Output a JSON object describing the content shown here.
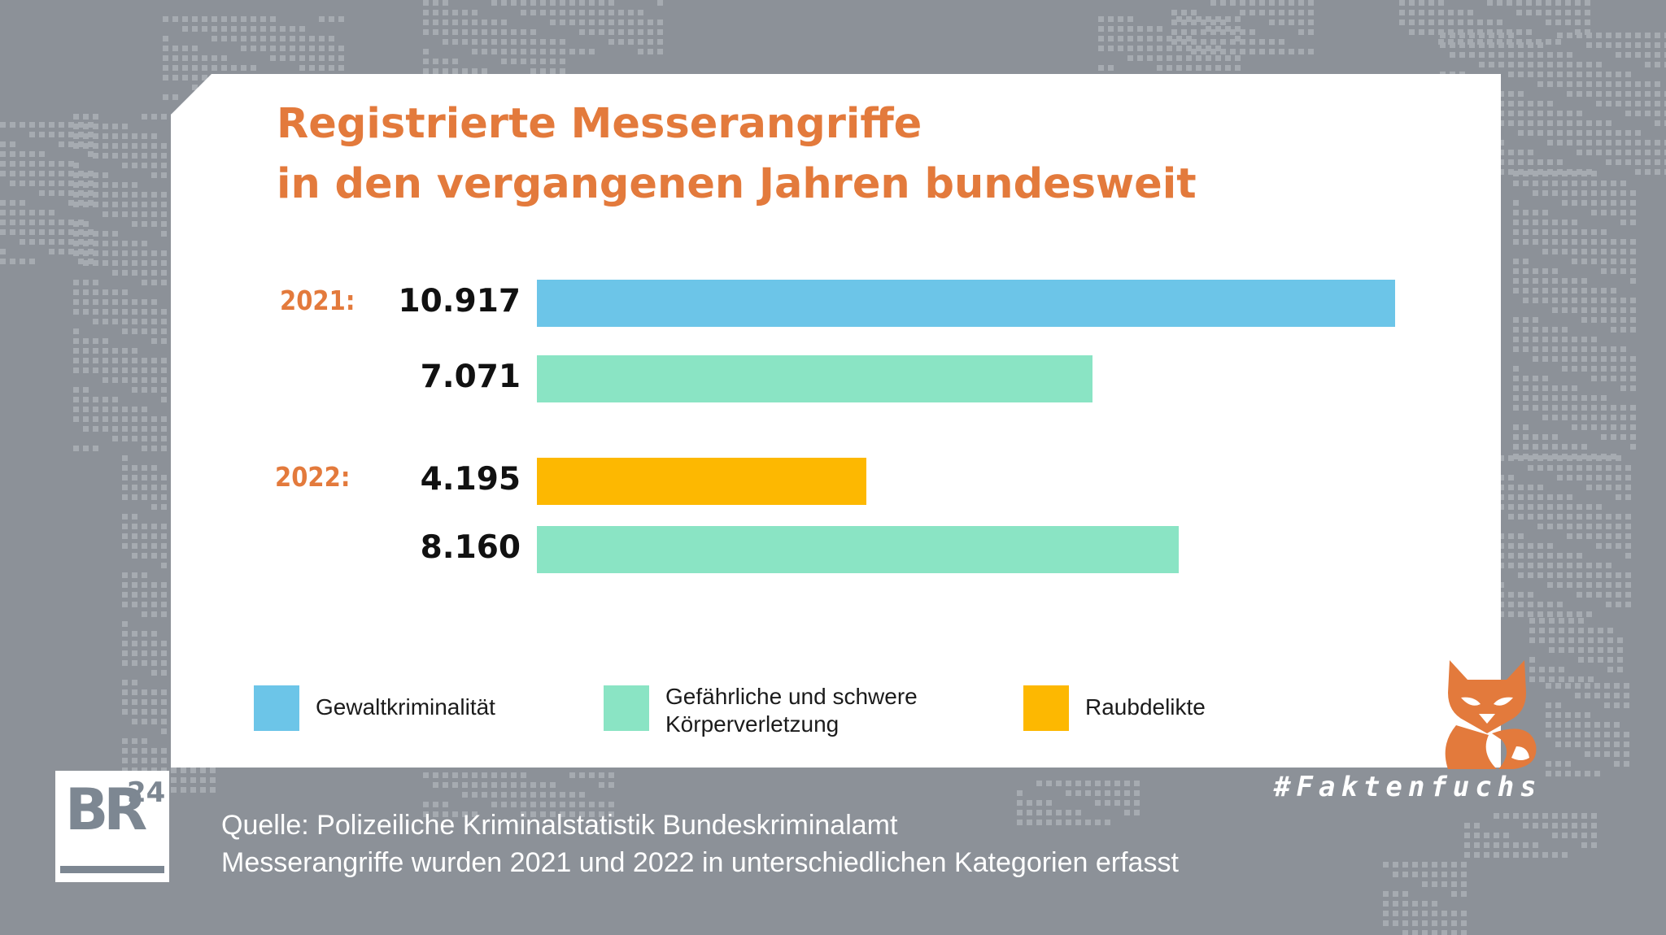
{
  "chart_data": {
    "type": "bar",
    "orientation": "horizontal",
    "title": "Registrierte Messerangriffe in den vergangenen Jahren bundesweit",
    "title_lines": [
      "Registrierte Messerangriffe",
      "in den vergangenen Jahren bundesweit"
    ],
    "groups": [
      {
        "label": "2021:",
        "bars": [
          {
            "category": "Gewaltkriminalität",
            "value": 10917,
            "label": "10.917"
          },
          {
            "category": "Gefährliche und schwere Körperverletzung",
            "value": 7071,
            "label": "7.071"
          }
        ]
      },
      {
        "label": "2022:",
        "bars": [
          {
            "category": "Raubdelikte",
            "value": 4195,
            "label": "4.195"
          },
          {
            "category": "Gefährliche und schwere Körperverletzung",
            "value": 8160,
            "label": "8.160"
          }
        ]
      }
    ],
    "legend": [
      {
        "name": "Gewaltkriminalität",
        "lines": [
          "Gewaltkriminalität"
        ],
        "color": "#6cc5e8"
      },
      {
        "name": "Gefährliche und schwere Körperverletzung",
        "lines": [
          "Gefährliche und schwere",
          "Körperverletzung"
        ],
        "color": "#8ae4c4"
      },
      {
        "name": "Raubdelikte",
        "lines": [
          "Raubdelikte"
        ],
        "color": "#fdb801"
      }
    ],
    "legend_position": "bottom",
    "grid": false
  },
  "footer": {
    "source_lines": [
      "Quelle: Polizeiliche Kriminalstatistik Bundeskriminalamt",
      "Messerangriffe wurden 2021 und 2022 in unterschiedlichen Kategorien erfasst"
    ],
    "hashtag": "#Faktenfuchs",
    "logo_text": "BR",
    "logo_superscript": "24"
  },
  "colors": {
    "accent": "#e37a3c",
    "background": "#8c9198"
  }
}
